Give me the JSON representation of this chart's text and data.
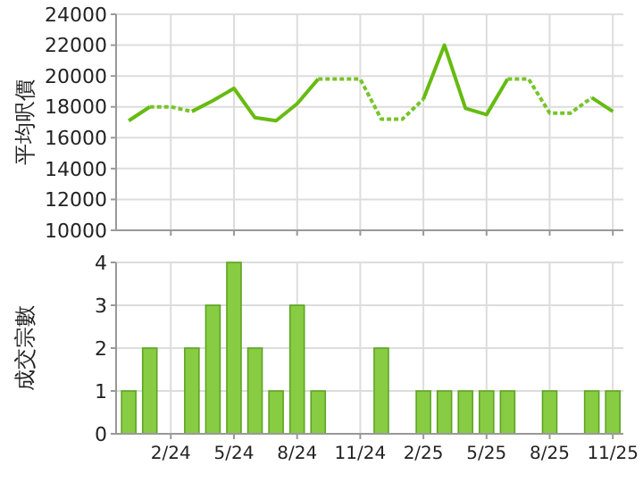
{
  "chart_data": [
    {
      "type": "line",
      "ylabel": "平均呎價",
      "categories": [
        null,
        null,
        null,
        null,
        null,
        null,
        null,
        null,
        null,
        null,
        null,
        null,
        null,
        null,
        null,
        null,
        null,
        null,
        null,
        null,
        null,
        null,
        null,
        null
      ],
      "series": [
        {
          "color": "#66bb11",
          "line_style": "solid",
          "values": [
            17100,
            18000,
            null,
            17700,
            18400,
            19200,
            17300,
            17100,
            18200,
            19800,
            null,
            null,
            null,
            null,
            18500,
            22000,
            17900,
            17500,
            19800,
            null,
            null,
            null,
            18600,
            17700
          ]
        },
        {
          "color": "#77c42a",
          "line_style": "dotted",
          "values": [
            null,
            18000,
            18000,
            17700,
            null,
            null,
            null,
            null,
            null,
            19800,
            19800,
            19800,
            17200,
            17200,
            18500,
            null,
            null,
            null,
            19800,
            19800,
            17600,
            17600,
            18600,
            null
          ]
        }
      ],
      "ylim": [
        10000,
        24000
      ],
      "yticks": [
        10000,
        12000,
        14000,
        16000,
        18000,
        20000,
        22000,
        24000
      ],
      "grid": true
    },
    {
      "type": "bar",
      "ylabel": "成交宗數",
      "categories": [
        null,
        null,
        "2/24",
        null,
        null,
        "5/24",
        null,
        null,
        "8/24",
        null,
        null,
        "11/24",
        null,
        null,
        "2/25",
        null,
        null,
        "5/25",
        null,
        null,
        "8/25",
        null,
        null,
        "11/25"
      ],
      "series": [
        {
          "color": "#88cc44",
          "values": [
            1,
            2,
            0,
            2,
            3,
            4,
            2,
            1,
            3,
            1,
            0,
            0,
            2,
            0,
            1,
            1,
            1,
            1,
            1,
            0,
            1,
            0,
            1,
            1
          ]
        }
      ],
      "ylim": [
        0,
        4
      ],
      "yticks": [
        0,
        1,
        2,
        3,
        4
      ],
      "grid": true
    }
  ]
}
